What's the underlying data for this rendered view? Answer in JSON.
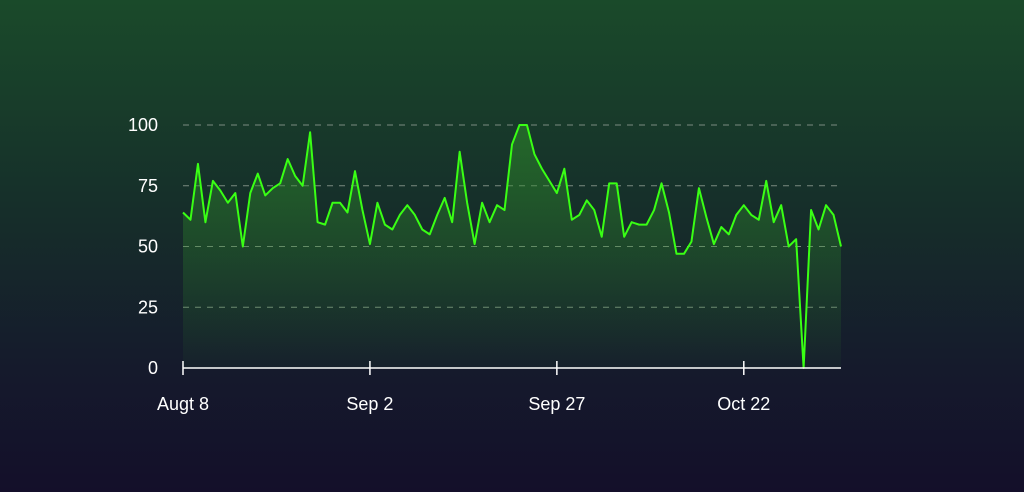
{
  "colors": {
    "line": "#39ff14",
    "fill_top": "#2f8f2a",
    "grid": "#7a8a80",
    "axis": "#ffffff",
    "text": "#ffffff"
  },
  "chart_data": {
    "type": "area",
    "title": "",
    "xlabel": "",
    "ylabel": "",
    "grid": true,
    "ylim": [
      0,
      100
    ],
    "yticks": [
      0,
      25,
      50,
      75,
      100
    ],
    "xticks": [
      {
        "label": "Augt 8",
        "index": 0
      },
      {
        "label": "Sep 2",
        "index": 25
      },
      {
        "label": "Sep 27",
        "index": 50
      },
      {
        "label": "Oct 22",
        "index": 75
      }
    ],
    "series": [
      {
        "values": [
          64,
          61,
          84,
          60,
          77,
          73,
          68,
          72,
          50,
          72,
          80,
          71,
          74,
          76,
          86,
          79,
          75,
          97,
          60,
          59,
          68,
          68,
          64,
          81,
          65,
          51,
          68,
          59,
          57,
          63,
          67,
          63,
          57,
          55,
          63,
          70,
          60,
          89,
          68,
          51,
          68,
          60,
          67,
          65,
          92,
          100,
          100,
          88,
          82,
          77,
          72,
          82,
          61,
          63,
          69,
          65,
          54,
          76,
          76,
          54,
          60,
          59,
          59,
          65,
          76,
          64,
          47,
          47,
          52,
          74,
          62,
          51,
          58,
          55,
          63,
          67,
          63,
          61,
          77,
          60,
          67,
          50,
          53,
          0,
          65,
          57,
          67,
          63,
          50
        ]
      }
    ]
  }
}
